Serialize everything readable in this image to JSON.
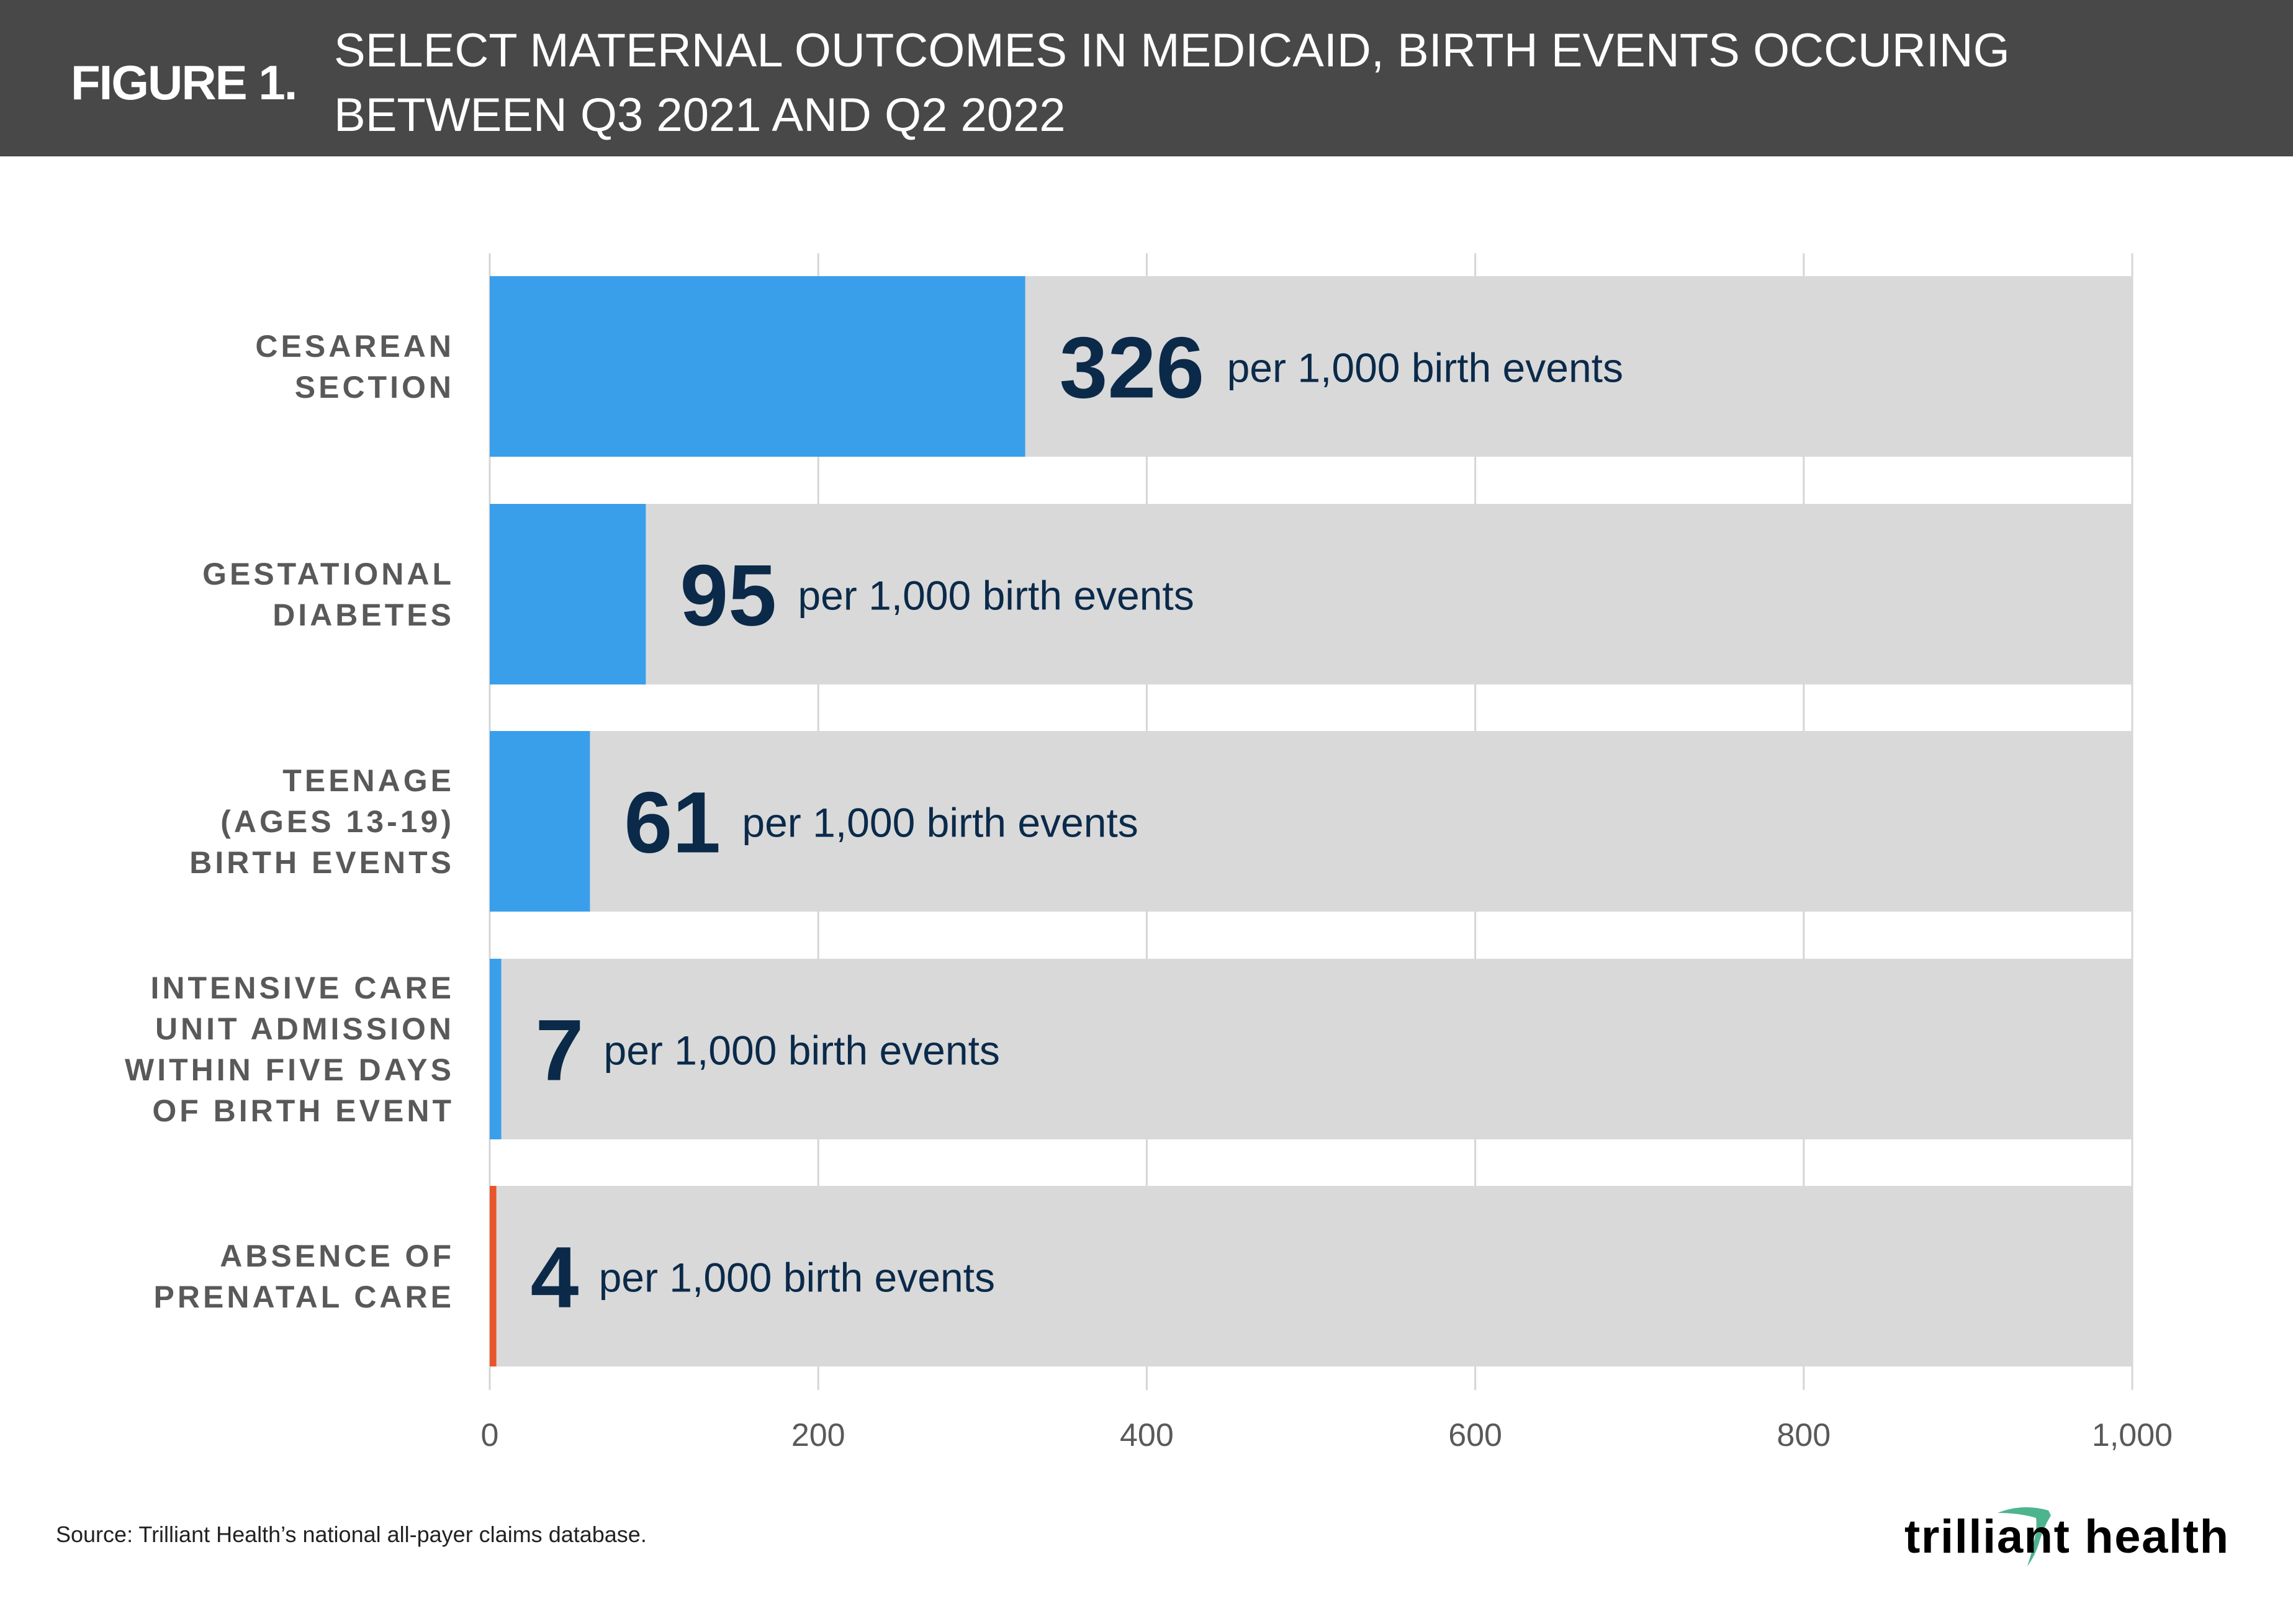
{
  "header": {
    "figure_label": "FIGURE 1.",
    "title_line1": "SELECT MATERNAL OUTCOMES IN MEDICAID, BIRTH EVENTS OCCURING",
    "title_line2": "BETWEEN Q3 2021 AND Q2 2022"
  },
  "chart_data": {
    "type": "bar",
    "orientation": "horizontal",
    "title": "SELECT MATERNAL OUTCOMES IN MEDICAID, BIRTH EVENTS OCCURING BETWEEN Q3 2021 AND Q2 2022",
    "categories": [
      [
        "CESAREAN",
        "SECTION"
      ],
      [
        "GESTATIONAL",
        "DIABETES"
      ],
      [
        "TEENAGE",
        "(AGES 13-19)",
        "BIRTH EVENTS"
      ],
      [
        "INTENSIVE CARE",
        "UNIT ADMISSION",
        "WITHIN FIVE DAYS",
        "OF BIRTH EVENT"
      ],
      [
        "ABSENCE OF",
        "PRENATAL CARE"
      ]
    ],
    "values": [
      326,
      95,
      61,
      7,
      4
    ],
    "value_labels": [
      "326",
      "95",
      "61",
      "7",
      "4"
    ],
    "unit_label": "per 1,000 birth events",
    "bar_colors": [
      "#3a9fea",
      "#3a9fea",
      "#3a9fea",
      "#3a9fea",
      "#e8552a"
    ],
    "background_color": "#d9d9d9",
    "label_color": "#0b2a4a",
    "xlim": [
      0,
      1000
    ],
    "xticks": [
      0,
      200,
      400,
      600,
      800,
      1000
    ],
    "xtick_labels": [
      "0",
      "200",
      "400",
      "600",
      "800",
      "1,000"
    ],
    "grid": true,
    "xlabel": "",
    "ylabel": ""
  },
  "footer": {
    "source": "Source: Trilliant Health’s national all-payer claims database.",
    "logo_text": "trilliant health"
  }
}
